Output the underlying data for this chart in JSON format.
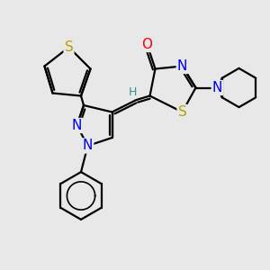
{
  "bg_color": "#e8e8e8",
  "bond_color": "#000000",
  "bond_width": 1.6,
  "atom_colors": {
    "S": "#b8a000",
    "N": "#0000ee",
    "O": "#ff0000",
    "H": "#3a9090",
    "C": "#000000"
  },
  "font_size_atom": 11,
  "fig_size": [
    3.0,
    3.0
  ],
  "dpi": 100,
  "xlim": [
    0,
    10
  ],
  "ylim": [
    0,
    10
  ]
}
